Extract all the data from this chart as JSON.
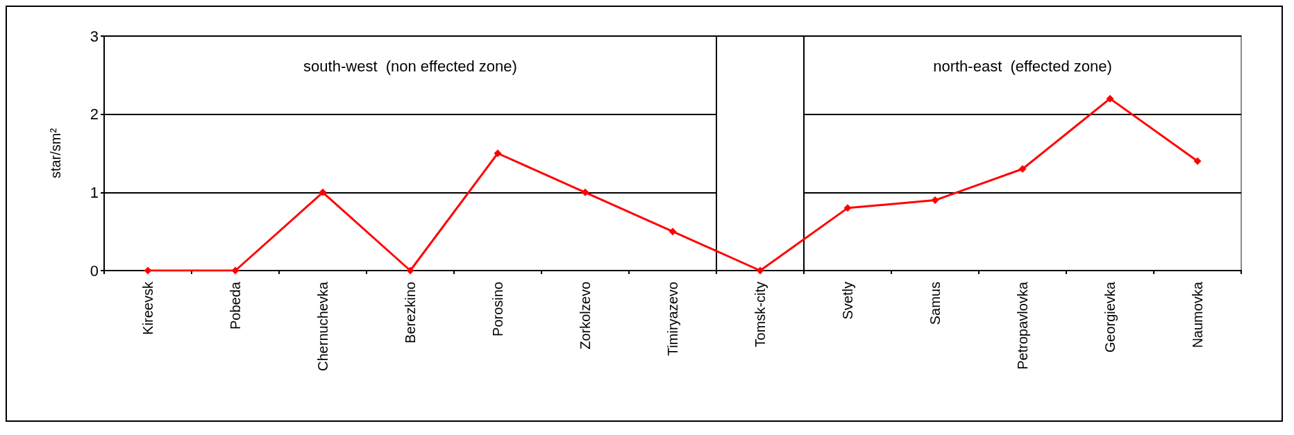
{
  "chart_data": {
    "type": "line",
    "ylabel": "star/sm²",
    "categories": [
      "Kireevsk",
      "Pobeda",
      "Chernuchevka",
      "Berezkino",
      "Porosino",
      "Zorkolzevo",
      "Timiryazevo",
      "Tomsk-city",
      "Svetly",
      "Samus",
      "Petropavlovka",
      "Georgievka",
      "Naumovka"
    ],
    "series": [
      {
        "color": "#ff0000",
        "values": [
          0,
          0,
          1,
          0,
          1.5,
          1,
          0.5,
          0,
          0.8,
          0.9,
          1.3,
          2.2,
          1.4
        ]
      }
    ],
    "ylim": [
      0,
      3
    ],
    "yticks": [
      0,
      1,
      2,
      3
    ],
    "grid": "y",
    "marker": "diamond",
    "line_style": "solid",
    "bands": [
      {
        "axis": "x",
        "from": "Tomsk-city",
        "to": "Tomsk-city",
        "color": "#ffffff"
      }
    ],
    "annotations": [
      "south-west  (non effected zone)",
      "north-east  (effected zone)"
    ]
  }
}
